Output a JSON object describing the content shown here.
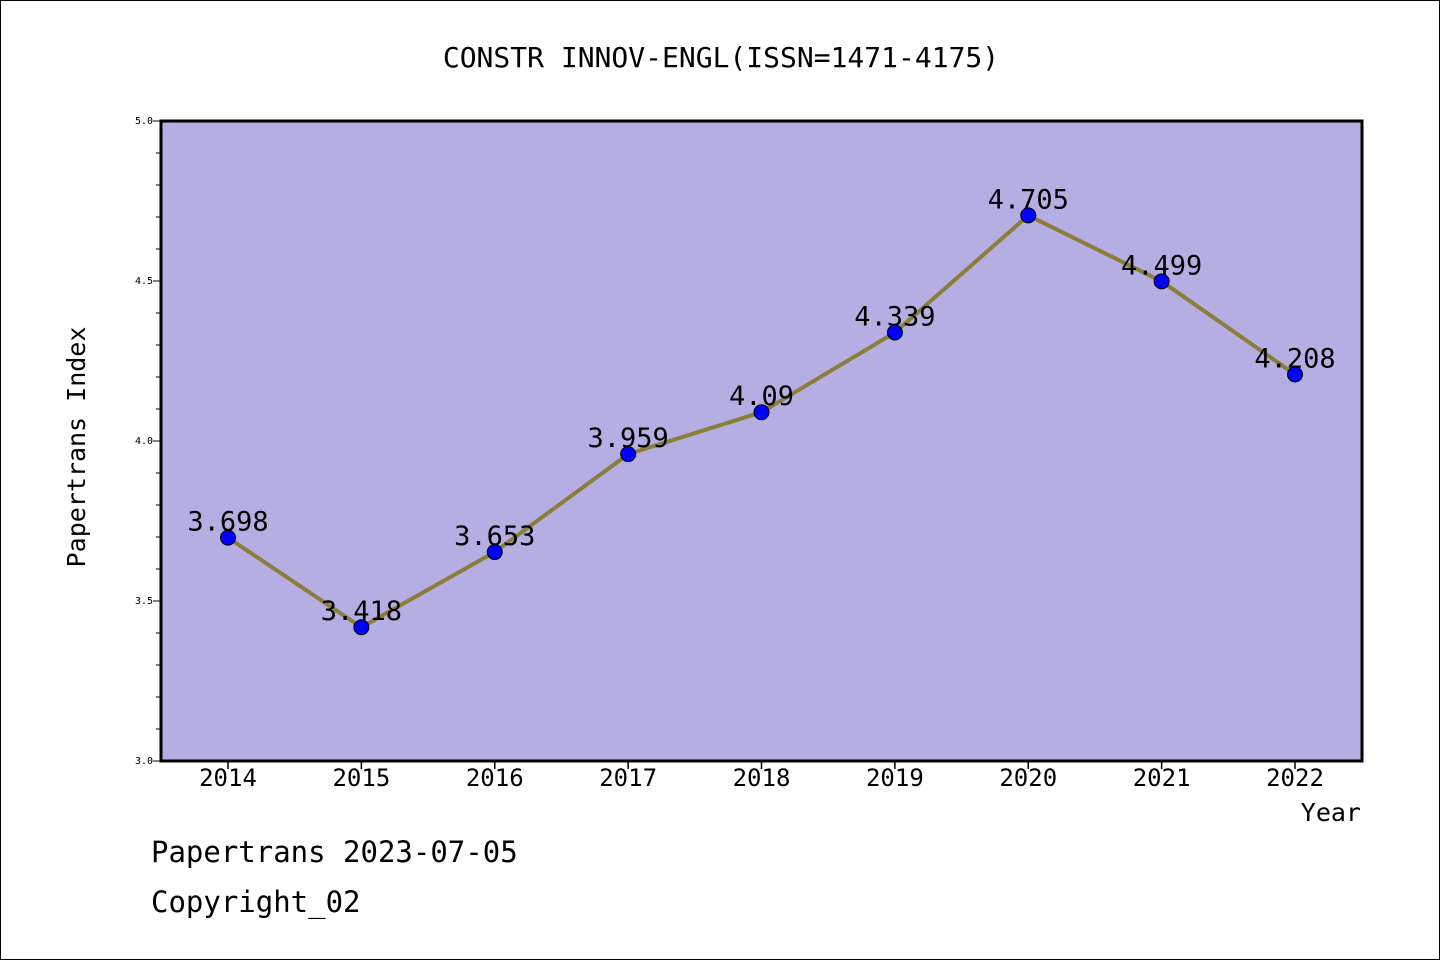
{
  "footer": {
    "line1": "Papertrans 2023-07-05",
    "line2": "Copyright_02"
  },
  "chart_data": {
    "type": "line",
    "title": "CONSTR INNOV-ENGL(ISSN=1471-4175)",
    "xlabel": "Year",
    "ylabel": "Papertrans Index",
    "categories": [
      "2014",
      "2015",
      "2016",
      "2017",
      "2018",
      "2019",
      "2020",
      "2021",
      "2022"
    ],
    "series": [
      {
        "values": [
          3.698,
          3.418,
          3.653,
          3.959,
          4.09,
          4.339,
          4.705,
          4.499,
          4.208
        ],
        "labels": [
          "3.698",
          "3.418",
          "3.653",
          "3.959",
          "4.09",
          "4.339",
          "4.705",
          "4.499",
          "4.208"
        ]
      }
    ],
    "ylim": [
      3.0,
      5.0
    ],
    "yticks": [
      "3.0",
      "3.5",
      "4.0",
      "4.5",
      "5.0"
    ],
    "grid": false,
    "colors": {
      "plot_background": "#b5aee2",
      "line": "#8b7d3a",
      "marker": "#0000ff"
    }
  }
}
